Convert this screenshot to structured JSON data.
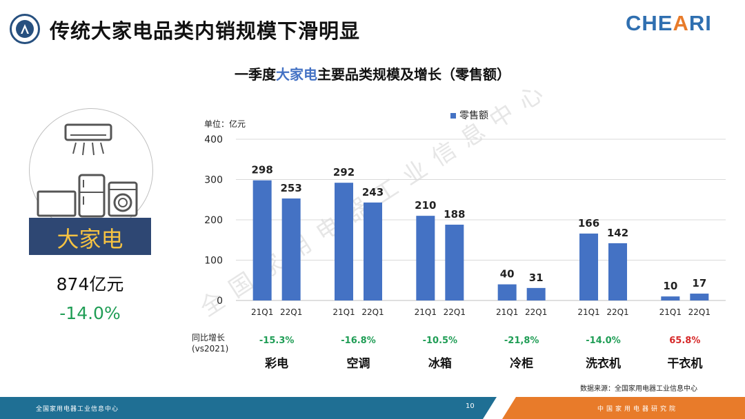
{
  "header": {
    "title": "传统大家电品类内销规模下滑明显",
    "brand": "CHEARI"
  },
  "subtitle": {
    "prefix": "一季度",
    "highlight": "大家电",
    "suffix": "主要品类规模及增长（零售额）"
  },
  "side_panel": {
    "category": "大家电",
    "total": "874亿元",
    "growth": "-14.0%",
    "illustration_icons": [
      "air-conditioner-icon",
      "tv-icon",
      "refrigerator-icon",
      "washing-machine-icon"
    ]
  },
  "chart_labels": {
    "unit": "单位：亿元",
    "legend": "零售额",
    "growth_row_label_1": "同比增长",
    "growth_row_label_2": "(vs2021)"
  },
  "chart_data": {
    "type": "bar",
    "title": "",
    "ylabel": "",
    "xlabel": "",
    "ylim": [
      0,
      400
    ],
    "yticks": [
      0,
      100,
      200,
      300,
      400
    ],
    "grid": true,
    "legend_position": "top",
    "bar_color": "#4472c4",
    "series_name": "零售额",
    "groups": [
      {
        "name": "彩电",
        "periods": [
          "21Q1",
          "22Q1"
        ],
        "values": [
          298,
          253
        ],
        "growth": "-15.3%",
        "growth_color": "#1f9d55"
      },
      {
        "name": "空调",
        "periods": [
          "21Q1",
          "22Q1"
        ],
        "values": [
          292,
          243
        ],
        "growth": "-16.8%",
        "growth_color": "#1f9d55"
      },
      {
        "name": "冰箱",
        "periods": [
          "21Q1",
          "22Q1"
        ],
        "values": [
          210,
          188
        ],
        "growth": "-10.5%",
        "growth_color": "#1f9d55"
      },
      {
        "name": "冷柜",
        "periods": [
          "21Q1",
          "22Q1"
        ],
        "values": [
          40,
          31
        ],
        "growth": "-21,8%",
        "growth_color": "#1f9d55"
      },
      {
        "name": "洗衣机",
        "periods": [
          "21Q1",
          "22Q1"
        ],
        "values": [
          166,
          142
        ],
        "growth": "-14.0%",
        "growth_color": "#1f9d55"
      },
      {
        "name": "干衣机",
        "periods": [
          "21Q1",
          "22Q1"
        ],
        "values": [
          10,
          17
        ],
        "growth": "65.8%",
        "growth_color": "#d62828"
      }
    ]
  },
  "watermark": "全国家用电器工业信息中心",
  "source": "数据来源：全国家用电器工业信息中心",
  "footer": {
    "left": "全国家用电器工业信息中心",
    "page": "10",
    "right": "中国家用电器研究院"
  }
}
